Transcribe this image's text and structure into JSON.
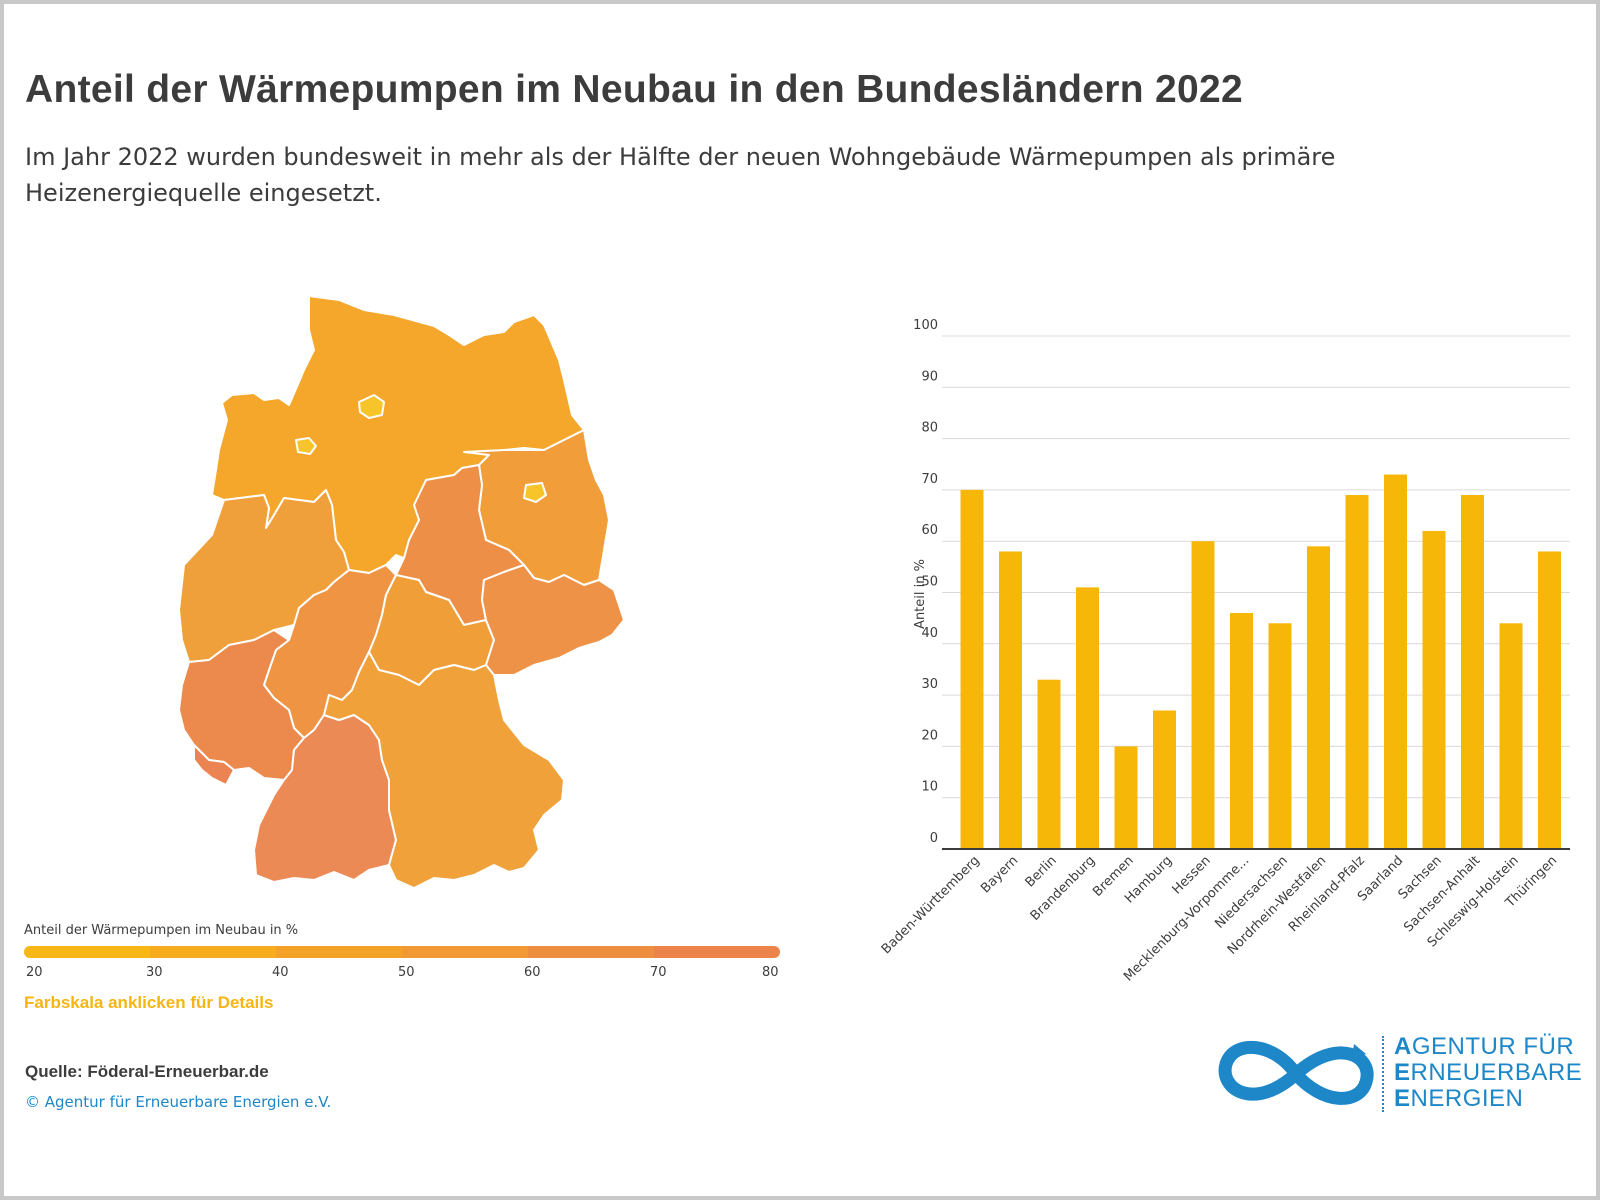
{
  "header": {
    "title": "Anteil der Wärmepumpen im Neubau in den Bundesländern 2022",
    "subtitle": "Im Jahr 2022 wurden bundesweit in mehr als der Hälfte der neuen Wohngebäude Wärmepumpen als primäre Heizenergiequelle eingesetzt."
  },
  "legend": {
    "title": "Anteil der Wärmepumpen im Neubau in %",
    "ticks": [
      "20",
      "30",
      "40",
      "50",
      "60",
      "70",
      "80"
    ],
    "colors": [
      "#f7b714",
      "#f6ac1d",
      "#f4a128",
      "#f19a35",
      "#ee8f40",
      "#ec844a"
    ],
    "hint": "Farbskala anklicken für Details"
  },
  "footer": {
    "source": "Quelle: Föderal-Erneuerbar.de",
    "copyright": "© Agentur für Erneuerbare Energien e.V."
  },
  "logo": {
    "lines": [
      {
        "initial": "A",
        "rest": "GENTUR FÜR"
      },
      {
        "initial": "E",
        "rest": "RNEUERBARE"
      },
      {
        "initial": "E",
        "rest": "NERGIEN"
      }
    ]
  },
  "map": {
    "fill_colors": {
      "north": "#f4a72a",
      "brandenburg": "#f19d3a",
      "sachsen_anhalt": "#ee8f48",
      "nrw": "#f0a03a",
      "hessen": "#ee9442",
      "thueringen": "#f09f38",
      "sachsen": "#ee9247",
      "rlp": "#ec8a4e",
      "saarland": "#eb8352",
      "bw": "#ec8a55",
      "bayern": "#f0a13a",
      "cities": "#f7c52a",
      "border": "#ffffff"
    }
  },
  "chart_data": {
    "type": "bar",
    "ylabel": "Anteil in %",
    "ylim": [
      0,
      100
    ],
    "yticks": [
      0,
      10,
      20,
      30,
      40,
      50,
      60,
      70,
      80,
      90,
      100
    ],
    "grid": true,
    "bar_color": "#f7b708",
    "categories": [
      "Baden-Württemberg",
      "Bayern",
      "Berlin",
      "Brandenburg",
      "Bremen",
      "Hamburg",
      "Hessen",
      "Mecklenburg-Vorpomme...",
      "Niedersachsen",
      "Nordrhein-Westfalen",
      "Rheinland-Pfalz",
      "Saarland",
      "Sachsen",
      "Sachsen-Anhalt",
      "Schleswig-Holstein",
      "Thüringen"
    ],
    "values": [
      70,
      58,
      33,
      51,
      20,
      27,
      60,
      46,
      44,
      59,
      69,
      73,
      62,
      69,
      44,
      58
    ]
  }
}
